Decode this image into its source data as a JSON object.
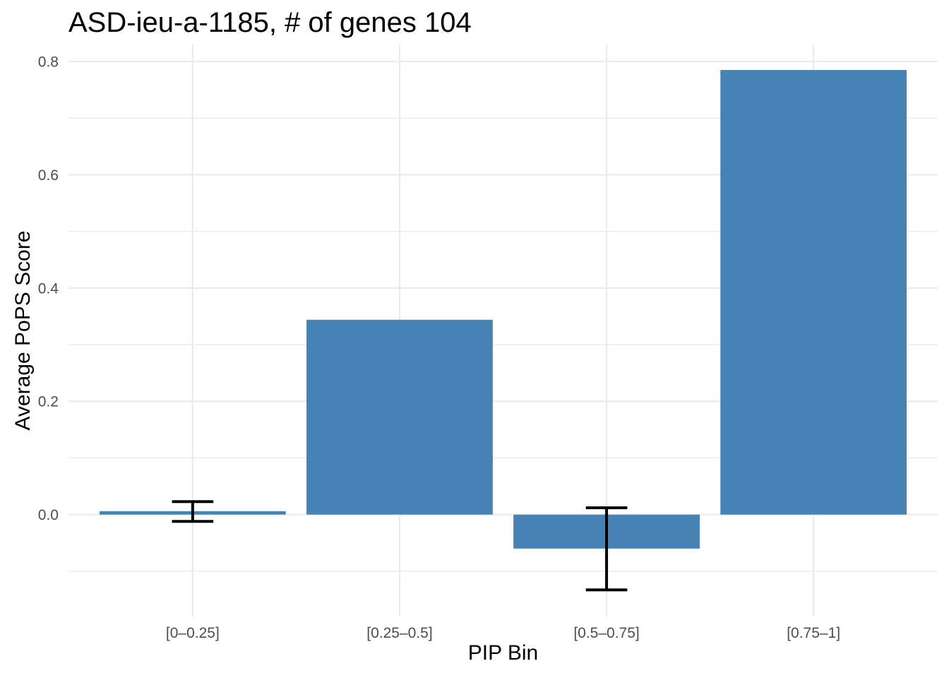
{
  "figure": {
    "background": "#FFFFFF"
  },
  "chart_data": {
    "type": "bar",
    "title": "ASD-ieu-a-1185, # of genes 104",
    "xlabel": "PIP Bin",
    "ylabel": "Average PoPS Score",
    "categories": [
      "[0–0.25]",
      "[0.25–0.5]",
      "[0.5–0.75]",
      "[0.75–1]"
    ],
    "values": [
      0.006,
      0.344,
      -0.06,
      0.785
    ],
    "error_bars": [
      {
        "ymin": -0.012,
        "ymax": 0.023
      },
      null,
      {
        "ymin": -0.133,
        "ymax": 0.012
      },
      null
    ],
    "ylim": [
      -0.18,
      0.83
    ],
    "y_major_ticks": [
      0.0,
      0.2,
      0.4,
      0.6,
      0.8
    ],
    "y_tick_labels": [
      "0.0",
      "0.2",
      "0.4",
      "0.6",
      "0.8"
    ],
    "y_minor_ticks": [
      -0.1,
      0.1,
      0.3,
      0.5,
      0.7
    ],
    "grid": true,
    "legend": "none",
    "bar_color": "#4682B4",
    "grid_color": "#EBEBEB",
    "tick_text_color": "#4D4D4D",
    "title_text_color": "#000000",
    "error_bar_color": "#000000"
  }
}
